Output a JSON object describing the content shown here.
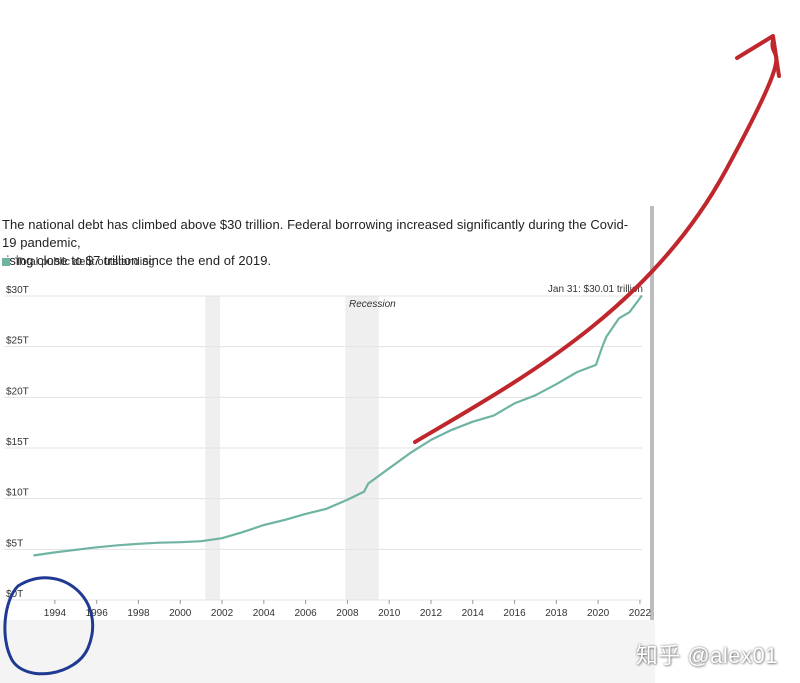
{
  "headline": {
    "line1": "The national debt has climbed above $30 trillion. Federal borrowing increased significantly during the Covid-19 pandemic,",
    "line2": "rising close to $7 trillion since the end of 2019."
  },
  "legend": {
    "label": "Total public debt outstanding",
    "color": "#6fb3a3"
  },
  "watermark": "知乎 @alex01",
  "annotation_colors": {
    "arrow": "#c0272d",
    "circle": "#1f3a93"
  },
  "chart_data": {
    "type": "line",
    "title": "",
    "xlabel": "",
    "ylabel": "",
    "x_ticks": [
      "1994",
      "1996",
      "1998",
      "2000",
      "2002",
      "2004",
      "2006",
      "2008",
      "2010",
      "2012",
      "2014",
      "2016",
      "2018",
      "2020",
      "2022"
    ],
    "y_ticks": [
      "$0T",
      "$5T",
      "$10T",
      "$15T",
      "$20T",
      "$25T",
      "$30T"
    ],
    "xlim": [
      1993.0,
      2022.1
    ],
    "ylim": [
      0,
      30
    ],
    "grid": true,
    "recession_label": "Recession",
    "recession_bands": [
      [
        2001.2,
        2001.9
      ],
      [
        2007.9,
        2009.5
      ]
    ],
    "annotation": "Jan 31: $30.01 trillion",
    "series": [
      {
        "name": "Total public debt outstanding",
        "color": "#6fb3a3",
        "points": [
          [
            1993.0,
            4.4
          ],
          [
            1994.0,
            4.7
          ],
          [
            1995.0,
            4.95
          ],
          [
            1996.0,
            5.2
          ],
          [
            1997.0,
            5.4
          ],
          [
            1998.0,
            5.55
          ],
          [
            1999.0,
            5.65
          ],
          [
            2000.0,
            5.7
          ],
          [
            2001.0,
            5.8
          ],
          [
            2002.0,
            6.1
          ],
          [
            2003.0,
            6.7
          ],
          [
            2004.0,
            7.4
          ],
          [
            2005.0,
            7.9
          ],
          [
            2006.0,
            8.5
          ],
          [
            2007.0,
            9.0
          ],
          [
            2008.0,
            9.9
          ],
          [
            2008.8,
            10.7
          ],
          [
            2009.0,
            11.5
          ],
          [
            2010.0,
            13.0
          ],
          [
            2011.0,
            14.5
          ],
          [
            2012.0,
            15.8
          ],
          [
            2013.0,
            16.8
          ],
          [
            2014.0,
            17.6
          ],
          [
            2015.0,
            18.2
          ],
          [
            2016.0,
            19.4
          ],
          [
            2017.0,
            20.2
          ],
          [
            2018.0,
            21.3
          ],
          [
            2019.0,
            22.5
          ],
          [
            2019.9,
            23.2
          ],
          [
            2020.2,
            25.0
          ],
          [
            2020.4,
            26.0
          ],
          [
            2021.0,
            27.8
          ],
          [
            2021.5,
            28.4
          ],
          [
            2021.9,
            29.5
          ],
          [
            2022.08,
            30.01
          ]
        ]
      }
    ]
  }
}
